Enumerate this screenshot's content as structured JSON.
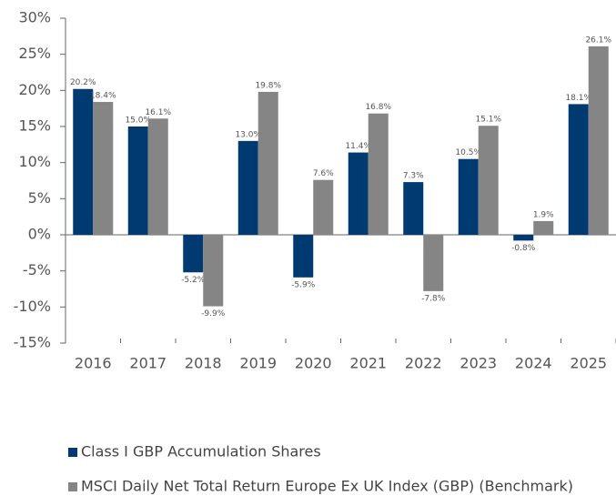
{
  "chart_data": {
    "type": "bar",
    "categories": [
      "2016",
      "2017",
      "2018",
      "2019",
      "2020",
      "2021",
      "2022",
      "2023",
      "2024",
      "2025"
    ],
    "series": [
      {
        "name": "Class I GBP Accumulation Shares",
        "color": "#003a70",
        "values": [
          20.2,
          15.0,
          -5.2,
          13.0,
          -5.9,
          11.4,
          7.3,
          10.5,
          -0.8,
          18.1
        ],
        "value_labels": [
          "20.2%",
          "15.0%",
          "-5.2%",
          "13.0%",
          "-5.9%",
          "11.4%",
          "7.3%",
          "10.5%",
          "-0.8%",
          "18.1%"
        ]
      },
      {
        "name": "MSCI Daily Net Total Return Europe Ex UK Index (GBP) (Benchmark)",
        "color": "#858585",
        "values": [
          18.4,
          16.1,
          -9.9,
          19.8,
          7.6,
          16.8,
          -7.8,
          15.1,
          1.9,
          26.1
        ],
        "value_labels": [
          "18.4%",
          "16.1%",
          "-9.9%",
          "19.8%",
          "7.6%",
          "16.8%",
          "-7.8%",
          "15.1%",
          "1.9%",
          "26.1%"
        ]
      }
    ],
    "ylim": [
      -15,
      30
    ],
    "yticks": [
      {
        "value": -15,
        "label": "-15%"
      },
      {
        "value": -10,
        "label": "-10%"
      },
      {
        "value": -5,
        "label": "-5%"
      },
      {
        "value": 0,
        "label": "0%"
      },
      {
        "value": 5,
        "label": "5%"
      },
      {
        "value": 10,
        "label": "10%"
      },
      {
        "value": 15,
        "label": "15%"
      },
      {
        "value": 20,
        "label": "20%"
      },
      {
        "value": 25,
        "label": "25%"
      },
      {
        "value": 30,
        "label": "30%"
      }
    ]
  }
}
